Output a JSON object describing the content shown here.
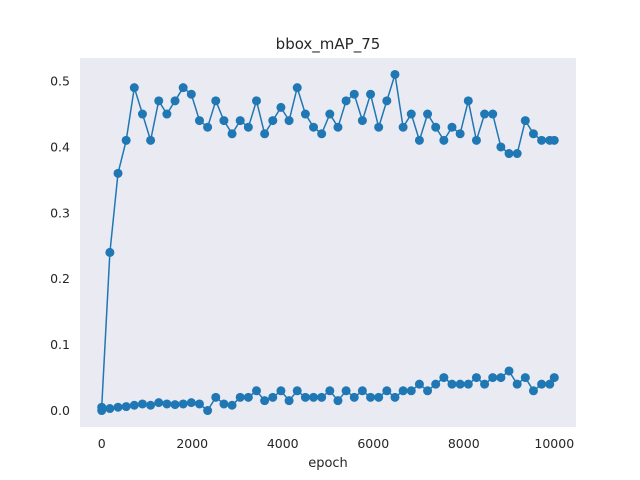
{
  "chart_data": {
    "type": "line",
    "title": "bbox_mAP_75",
    "xlabel": "epoch",
    "ylabel": "",
    "xlim": [
      -480,
      10480
    ],
    "ylim": [
      -0.025,
      0.535
    ],
    "x_ticks": [
      0,
      2000,
      4000,
      6000,
      8000,
      10000
    ],
    "x_tick_labels": [
      "0",
      "2000",
      "4000",
      "6000",
      "8000",
      "10000"
    ],
    "y_ticks": [
      0.0,
      0.1,
      0.2,
      0.3,
      0.4,
      0.5
    ],
    "y_tick_labels": [
      "0.0",
      "0.1",
      "0.2",
      "0.3",
      "0.4",
      "0.5"
    ],
    "grid": false,
    "legend": "none",
    "marker": "circle",
    "series_color": "#1f77b4",
    "plot_background": "#eaeaf2",
    "series": [
      {
        "x": [
          0,
          180,
          360,
          540,
          720,
          900,
          1080,
          1260,
          1440,
          1620,
          1800,
          1980,
          2160,
          2340,
          2520,
          2700,
          2880,
          3060,
          3240,
          3420,
          3600,
          3780,
          3960,
          4140,
          4320,
          4500,
          4680,
          4860,
          5040,
          5220,
          5400,
          5580,
          5760,
          5940,
          6120,
          6300,
          6480,
          6660,
          6840,
          7020,
          7200,
          7380,
          7560,
          7740,
          7920,
          8100,
          8280,
          8460,
          8640,
          8820,
          9000,
          9180,
          9360,
          9540,
          9720,
          9900,
          10000
        ],
        "y": [
          0.005,
          0.24,
          0.36,
          0.41,
          0.49,
          0.45,
          0.41,
          0.47,
          0.45,
          0.47,
          0.49,
          0.48,
          0.44,
          0.43,
          0.47,
          0.44,
          0.42,
          0.44,
          0.43,
          0.47,
          0.42,
          0.44,
          0.46,
          0.44,
          0.49,
          0.45,
          0.43,
          0.42,
          0.45,
          0.43,
          0.47,
          0.48,
          0.44,
          0.48,
          0.43,
          0.47,
          0.51,
          0.43,
          0.45,
          0.41,
          0.45,
          0.43,
          0.41,
          0.43,
          0.42,
          0.47,
          0.41,
          0.45,
          0.45,
          0.4,
          0.39,
          0.39,
          0.44,
          0.42,
          0.41,
          0.41,
          0.41
        ]
      },
      {
        "x": [
          0,
          180,
          360,
          540,
          720,
          900,
          1080,
          1260,
          1440,
          1620,
          1800,
          1980,
          2160,
          2340,
          2520,
          2700,
          2880,
          3060,
          3240,
          3420,
          3600,
          3780,
          3960,
          4140,
          4320,
          4500,
          4680,
          4860,
          5040,
          5220,
          5400,
          5580,
          5760,
          5940,
          6120,
          6300,
          6480,
          6660,
          6840,
          7020,
          7200,
          7380,
          7560,
          7740,
          7920,
          8100,
          8280,
          8460,
          8640,
          8820,
          9000,
          9180,
          9360,
          9540,
          9720,
          9900,
          10000
        ],
        "y": [
          0.0,
          0.003,
          0.005,
          0.006,
          0.008,
          0.01,
          0.008,
          0.012,
          0.01,
          0.009,
          0.01,
          0.012,
          0.01,
          0.0,
          0.02,
          0.01,
          0.008,
          0.02,
          0.02,
          0.03,
          0.015,
          0.02,
          0.03,
          0.015,
          0.03,
          0.02,
          0.02,
          0.02,
          0.03,
          0.015,
          0.03,
          0.02,
          0.03,
          0.02,
          0.02,
          0.03,
          0.02,
          0.03,
          0.03,
          0.04,
          0.03,
          0.04,
          0.05,
          0.04,
          0.04,
          0.04,
          0.05,
          0.04,
          0.05,
          0.05,
          0.06,
          0.04,
          0.05,
          0.03,
          0.04,
          0.04,
          0.05
        ]
      }
    ]
  }
}
